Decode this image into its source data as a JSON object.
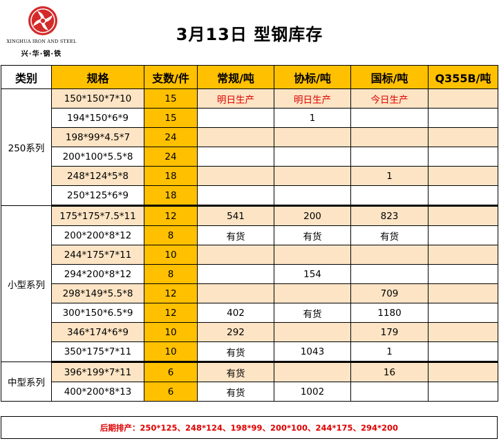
{
  "logo": {
    "english": "XINGHUA IRON AND STEEL",
    "chinese": "兴·华·钢·铁",
    "icon": "xinghua-logo-icon",
    "color": "#d42a2a"
  },
  "title": "3月13日 型钢库存",
  "columns": {
    "category": "类别",
    "spec": "规格",
    "count": "支数/件",
    "regular": "常规/吨",
    "association": "协标/吨",
    "national": "国标/吨",
    "q355b": "Q355B/吨"
  },
  "colors": {
    "header_accent": "#ffc000",
    "stripe": "#fce4c4",
    "alert_text": "#e00000"
  },
  "groups": [
    {
      "category": "250系列",
      "rows": [
        {
          "spec": "150*150*7*10",
          "count": "15",
          "regular": "明日生产",
          "association": "明日生产",
          "national": "今日生产",
          "q355b": ""
        },
        {
          "spec": "194*150*6*9",
          "count": "15",
          "regular": "",
          "association": "1",
          "national": "",
          "q355b": ""
        },
        {
          "spec": "198*99*4.5*7",
          "count": "24",
          "regular": "",
          "association": "",
          "national": "",
          "q355b": ""
        },
        {
          "spec": "200*100*5.5*8",
          "count": "24",
          "regular": "",
          "association": "",
          "national": "",
          "q355b": ""
        },
        {
          "spec": "248*124*5*8",
          "count": "18",
          "regular": "",
          "association": "",
          "national": "1",
          "q355b": ""
        },
        {
          "spec": "250*125*6*9",
          "count": "18",
          "regular": "",
          "association": "",
          "national": "",
          "q355b": ""
        }
      ]
    },
    {
      "category": "小型系列",
      "rows": [
        {
          "spec": "175*175*7.5*11",
          "count": "12",
          "regular": "541",
          "association": "200",
          "national": "823",
          "q355b": ""
        },
        {
          "spec": "200*200*8*12",
          "count": "8",
          "regular": "有货",
          "association": "有货",
          "national": "有货",
          "q355b": ""
        },
        {
          "spec": "244*175*7*11",
          "count": "10",
          "regular": "",
          "association": "",
          "national": "",
          "q355b": ""
        },
        {
          "spec": "294*200*8*12",
          "count": "8",
          "regular": "",
          "association": "154",
          "national": "",
          "q355b": ""
        },
        {
          "spec": "298*149*5.5*8",
          "count": "12",
          "regular": "",
          "association": "",
          "national": "709",
          "q355b": ""
        },
        {
          "spec": "300*150*6.5*9",
          "count": "12",
          "regular": "402",
          "association": "有货",
          "national": "1180",
          "q355b": ""
        },
        {
          "spec": "346*174*6*9",
          "count": "10",
          "regular": "292",
          "association": "",
          "national": "179",
          "q355b": ""
        },
        {
          "spec": "350*175*7*11",
          "count": "10",
          "regular": "有货",
          "association": "1043",
          "national": "1",
          "q355b": ""
        }
      ]
    },
    {
      "category": "中型系列",
      "rows": [
        {
          "spec": "396*199*7*11",
          "count": "6",
          "regular": "有货",
          "association": "",
          "national": "16",
          "q355b": ""
        },
        {
          "spec": "400*200*8*13",
          "count": "6",
          "regular": "有货",
          "association": "1002",
          "national": "",
          "q355b": ""
        }
      ]
    }
  ],
  "footer": "后期排产：250*125、248*124、198*99、200*100、244*175、294*200"
}
